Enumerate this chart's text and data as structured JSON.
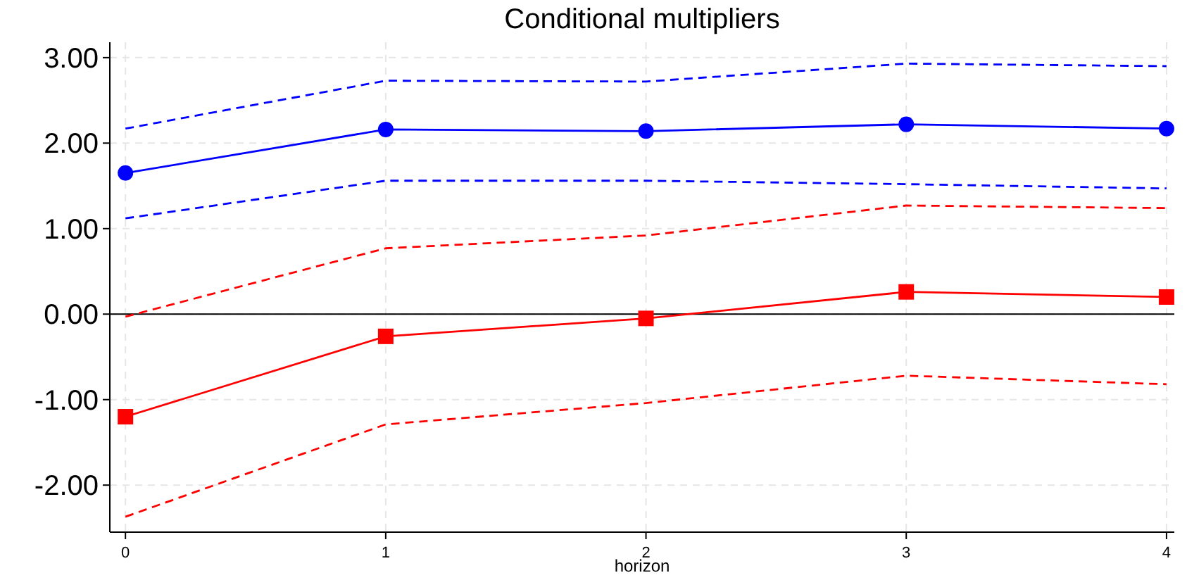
{
  "chart_data": {
    "type": "line",
    "title": "Conditional multipliers",
    "xlabel": "horizon",
    "x": [
      0,
      1,
      2,
      3,
      4
    ],
    "xlim": [
      -0.06,
      4.03
    ],
    "xticks": [
      0,
      1,
      2,
      3,
      4
    ],
    "ylim": [
      -2.55,
      3.18
    ],
    "yticks": [
      {
        "value": -2,
        "label": "-2.00"
      },
      {
        "value": -1,
        "label": "-1.00"
      },
      {
        "value": 0,
        "label": "0.00"
      },
      {
        "value": 1,
        "label": "1.00"
      },
      {
        "value": 2,
        "label": "2.00"
      },
      {
        "value": 3,
        "label": "3.00"
      }
    ],
    "grid": true,
    "ref_lines": [
      {
        "axis": "y",
        "value": 0,
        "color": "#000000",
        "line_style": "solid"
      }
    ],
    "series": [
      {
        "color": "#0000ff",
        "values": [
          2.17,
          2.73,
          2.72,
          2.93,
          2.9
        ],
        "line_style": "dashed",
        "marker": "none"
      },
      {
        "color": "#0000ff",
        "values": [
          1.65,
          2.16,
          2.14,
          2.22,
          2.17
        ],
        "line_style": "solid",
        "marker": "circle"
      },
      {
        "color": "#0000ff",
        "values": [
          1.12,
          1.56,
          1.56,
          1.52,
          1.47
        ],
        "line_style": "dashed",
        "marker": "none"
      },
      {
        "color": "#ff0000",
        "values": [
          -0.03,
          0.77,
          0.92,
          1.27,
          1.24
        ],
        "line_style": "dashed",
        "marker": "none"
      },
      {
        "color": "#ff0000",
        "values": [
          -1.2,
          -0.26,
          -0.05,
          0.26,
          0.2
        ],
        "line_style": "solid",
        "marker": "square"
      },
      {
        "color": "#ff0000",
        "values": [
          -2.37,
          -1.29,
          -1.04,
          -0.72,
          -0.82
        ],
        "line_style": "dashed",
        "marker": "none"
      }
    ]
  }
}
